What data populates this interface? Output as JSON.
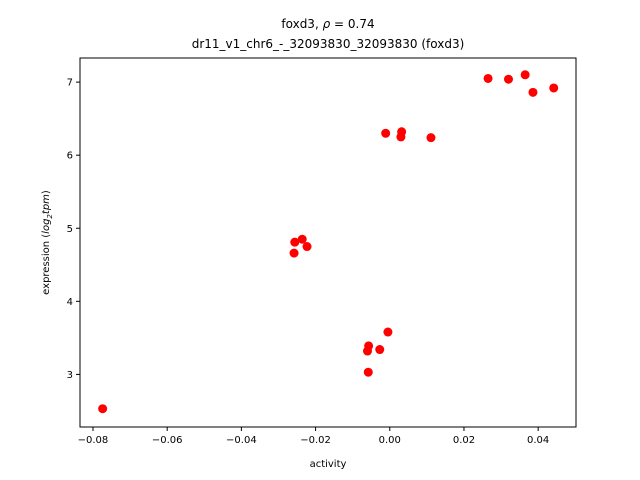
{
  "chart_data": {
    "type": "scatter",
    "title_line1_prefix": "foxd3, ",
    "title_line1_rho": "ρ",
    "title_line1_suffix": " = 0.74",
    "title_line2": "dr11_v1_chr6_-_32093830_32093830 (foxd3)",
    "xlabel": "activity",
    "ylabel_prefix": "expression (",
    "ylabel_log": "log",
    "ylabel_sub": "2",
    "ylabel_tpm": "tpm",
    "ylabel_suffix": ")",
    "xlim": [
      -0.0835,
      0.0502
    ],
    "ylim": [
      2.28,
      7.33
    ],
    "xticks": [
      -0.08,
      -0.06,
      -0.04,
      -0.02,
      0.0,
      0.02,
      0.04
    ],
    "xtick_labels": [
      "−0.08",
      "−0.06",
      "−0.04",
      "−0.02",
      "0.00",
      "0.02",
      "0.04"
    ],
    "yticks": [
      3,
      4,
      5,
      6,
      7
    ],
    "ytick_labels": [
      "3",
      "4",
      "5",
      "6",
      "7"
    ],
    "marker_color": "#ff0000",
    "grid": false,
    "points": [
      {
        "x": -0.0774,
        "y": 2.53
      },
      {
        "x": -0.0058,
        "y": 3.03
      },
      {
        "x": -0.006,
        "y": 3.32
      },
      {
        "x": -0.0057,
        "y": 3.39
      },
      {
        "x": -0.0027,
        "y": 3.34
      },
      {
        "x": -0.0005,
        "y": 3.58
      },
      {
        "x": -0.0258,
        "y": 4.66
      },
      {
        "x": -0.0256,
        "y": 4.81
      },
      {
        "x": -0.0236,
        "y": 4.85
      },
      {
        "x": -0.0223,
        "y": 4.75
      },
      {
        "x": -0.0011,
        "y": 6.3
      },
      {
        "x": 0.003,
        "y": 6.25
      },
      {
        "x": 0.0032,
        "y": 6.32
      },
      {
        "x": 0.0111,
        "y": 6.24
      },
      {
        "x": 0.0265,
        "y": 7.05
      },
      {
        "x": 0.032,
        "y": 7.04
      },
      {
        "x": 0.0365,
        "y": 7.1
      },
      {
        "x": 0.0386,
        "y": 6.86
      },
      {
        "x": 0.0442,
        "y": 6.92
      }
    ]
  }
}
